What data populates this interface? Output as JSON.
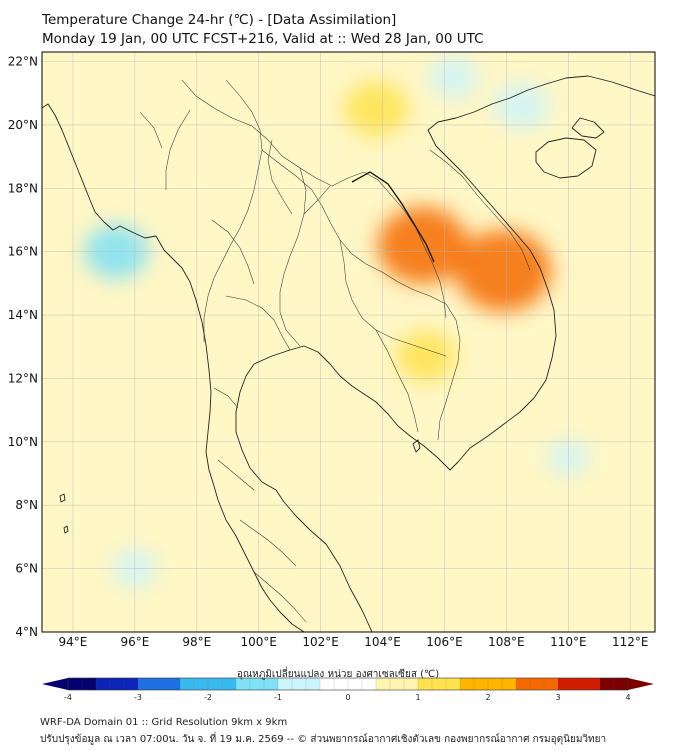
{
  "header": {
    "title_line1": "Temperature Change 24-hr (℃) - [Data Assimilation]",
    "title_line2": "Monday 19 Jan, 00 UTC FCST+216, Valid at :: Wed 28 Jan, 00 UTC"
  },
  "map": {
    "lat_ticks": [
      "22°N",
      "20°N",
      "18°N",
      "16°N",
      "14°N",
      "12°N",
      "10°N",
      "8°N",
      "6°N",
      "4°N"
    ],
    "lon_ticks": [
      "94°E",
      "96°E",
      "98°E",
      "100°E",
      "102°E",
      "104°E",
      "106°E",
      "108°E",
      "110°E",
      "112°E"
    ],
    "lat_range": [
      4,
      22.3
    ],
    "lon_range": [
      93,
      112.8
    ],
    "hotspots": [
      {
        "name": "north-laos-warm",
        "lon": 103.8,
        "lat": 20.5,
        "value": 1.4
      },
      {
        "name": "central-laos-hot",
        "lon": 105.3,
        "lat": 16.2,
        "value": 2.4
      },
      {
        "name": "central-vietnam-hot",
        "lon": 107.9,
        "lat": 15.4,
        "value": 2.6
      },
      {
        "name": "cambodia-warm",
        "lon": 105.4,
        "lat": 12.7,
        "value": 1.2
      },
      {
        "name": "myanmar-cool",
        "lon": 95.4,
        "lat": 16.0,
        "value": -1.4
      },
      {
        "name": "gulf-tonkin-cool",
        "lon": 108.5,
        "lat": 20.6,
        "value": -1.0
      },
      {
        "name": "north-vietnam-cool",
        "lon": 106.3,
        "lat": 21.5,
        "value": -0.8
      },
      {
        "name": "south-china-sea-cool",
        "lon": 110.0,
        "lat": 9.5,
        "value": -0.5
      },
      {
        "name": "andaman-cool",
        "lon": 96.0,
        "lat": 6.0,
        "value": -0.6
      }
    ]
  },
  "colorbar": {
    "title": "อุณหภูมิเปลี่ยนแปลง หน่วย องศาเซลเซียส (℃)",
    "ticks": [
      "-4",
      "-3",
      "-2",
      "-1",
      "0",
      "1",
      "2",
      "3",
      "4"
    ],
    "min": -4,
    "max": 4,
    "colors": [
      "#04006e",
      "#0c25b8",
      "#1e6fe3",
      "#38b9ef",
      "#7fe0f6",
      "#cdf4fa",
      "#ffffff",
      "#fff5b0",
      "#ffe24e",
      "#ffb400",
      "#f56a00",
      "#d01c00",
      "#7d0000"
    ]
  },
  "footer": {
    "line1": "WRF-DA Domain 01 :: Grid Resolution 9km x 9km",
    "line2": "ปรับปรุงข้อมูล ณ เวลา 07:00น. วัน จ. ที่ 19 ม.ค. 2569 -- © ส่วนพยากรณ์อากาศเชิงตัวเลข กองพยากรณ์อากาศ กรมอุตุนิยมวิทยา"
  }
}
